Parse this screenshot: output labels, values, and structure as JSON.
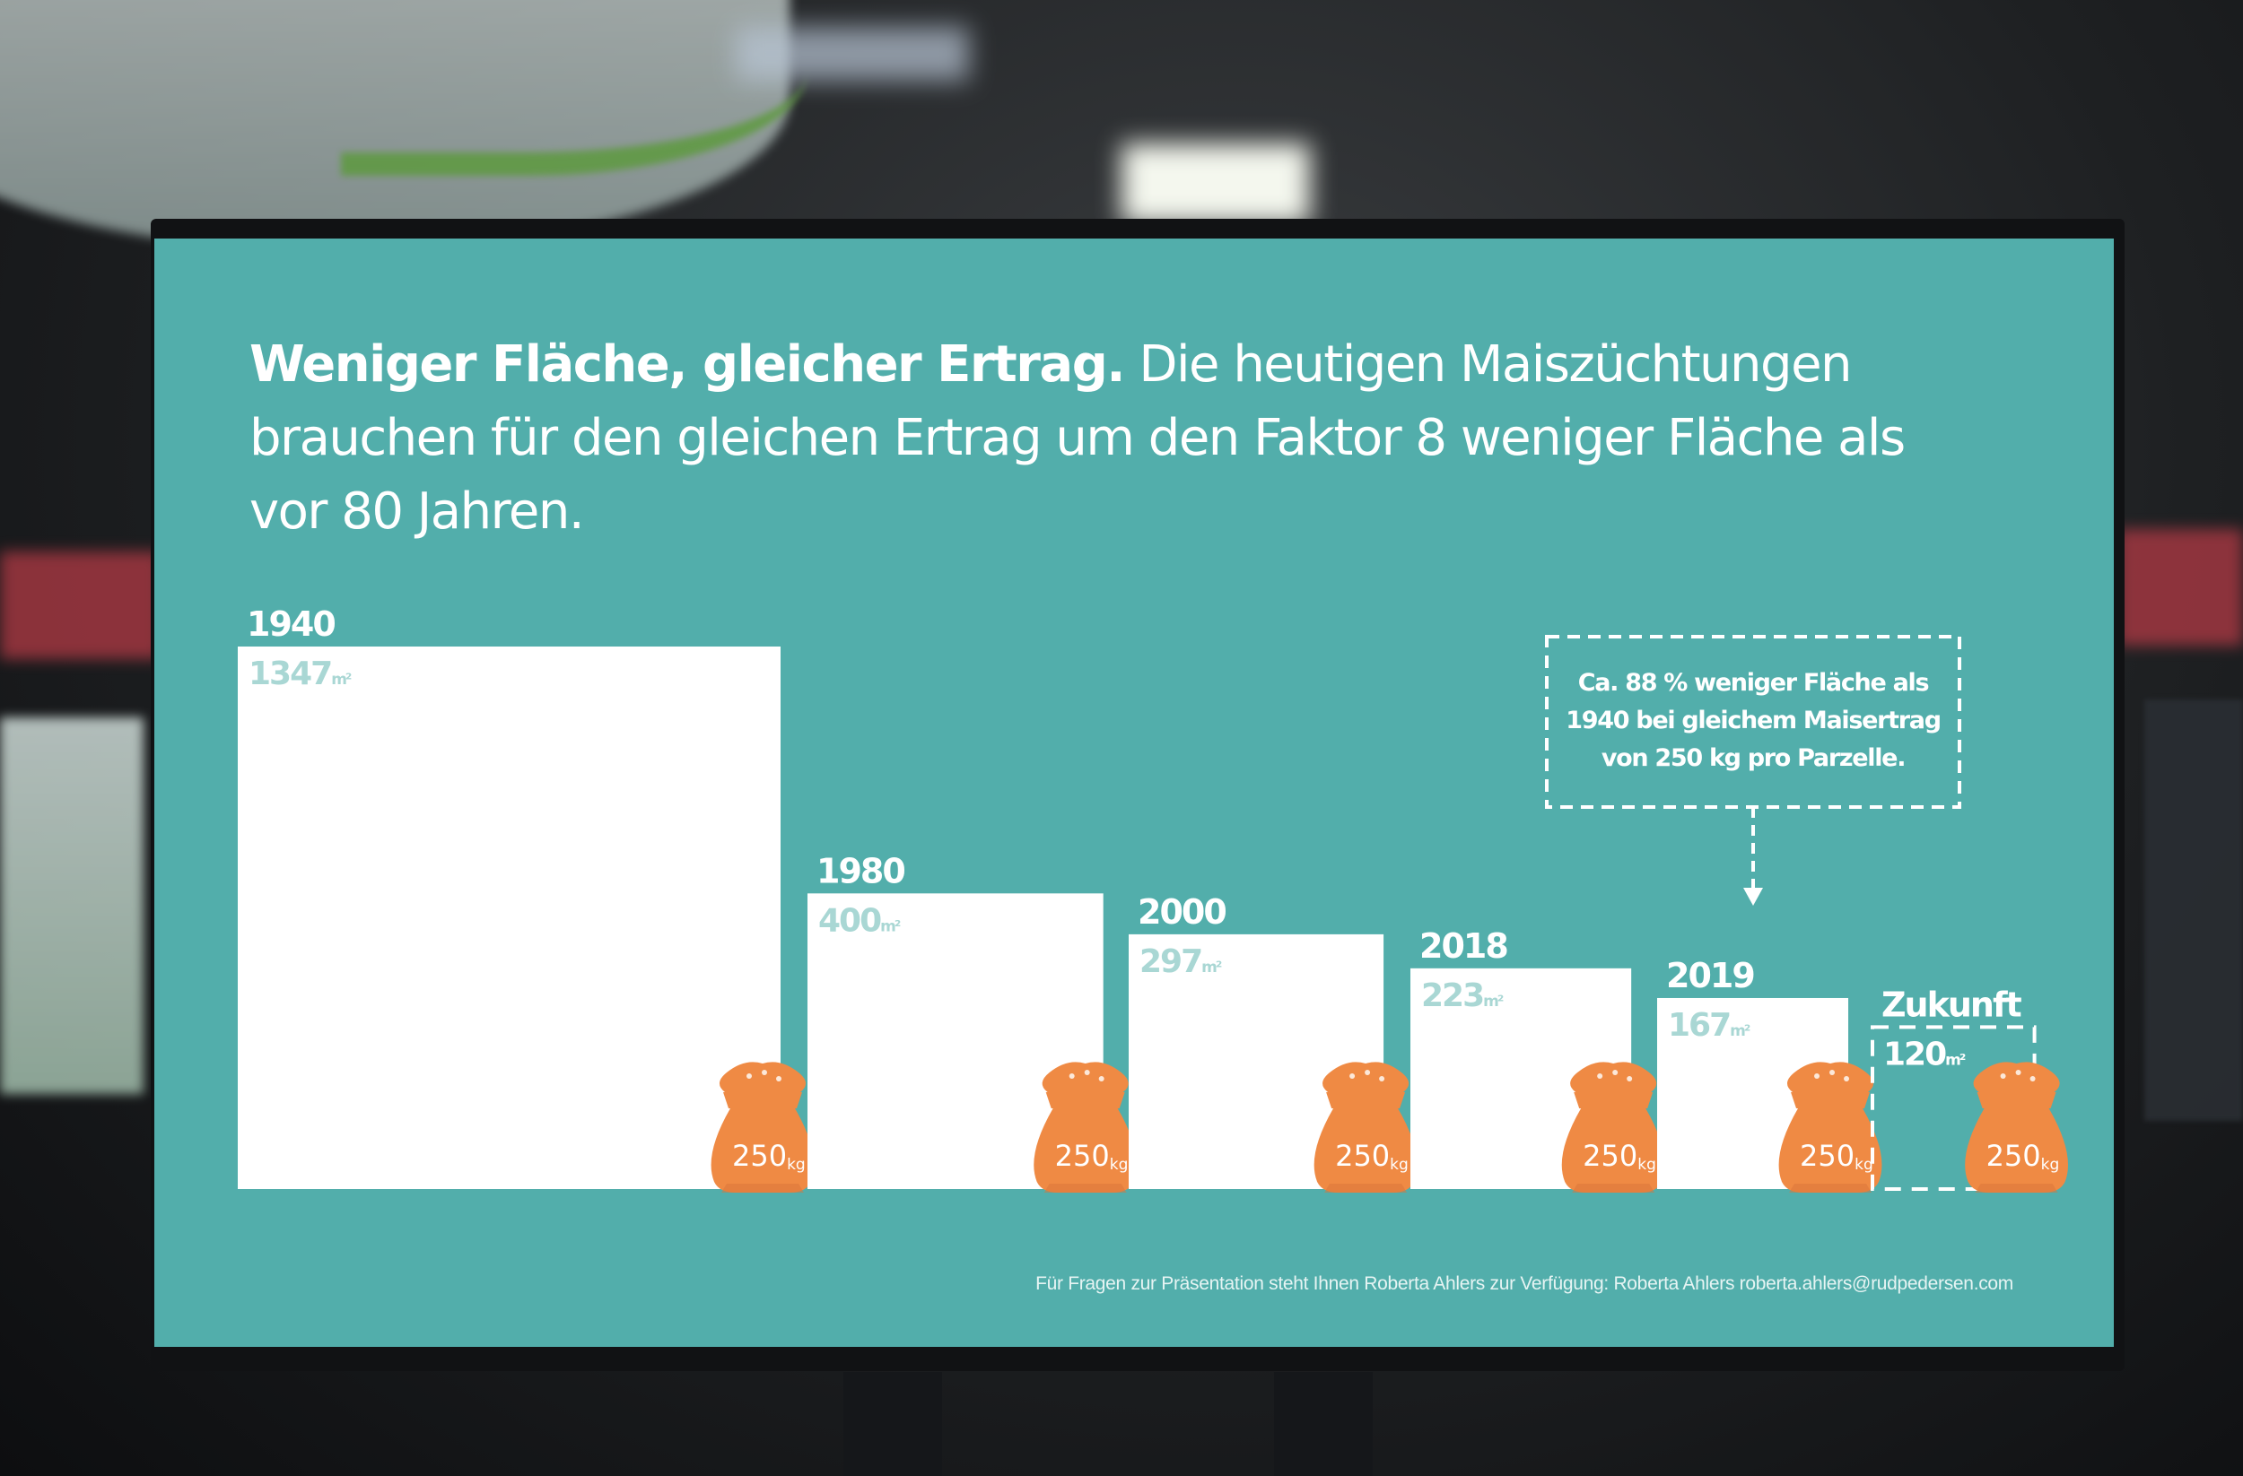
{
  "headline": {
    "bold": "Weniger Fläche, gleicher Ertrag.",
    "rest": " Die heutigen Maiszüchtungen brauchen für den gleichen Ertrag um den Faktor 8 weniger Fläche als vor 80 Jahren."
  },
  "chart_data": {
    "type": "bar",
    "categories": [
      "1940",
      "1980",
      "2000",
      "2018",
      "2019",
      "Zukunft"
    ],
    "values": [
      1347,
      400,
      297,
      223,
      167,
      120
    ],
    "unit": "m²",
    "value_labels": [
      "1347",
      "400",
      "297",
      "223",
      "167",
      "120"
    ],
    "sack_value": "250",
    "sack_unit": "kg",
    "estimated": [
      false,
      false,
      false,
      false,
      false,
      true
    ]
  },
  "callout": {
    "lines": [
      "Ca. 88 % weniger Fläche als",
      "1940 bei gleichem Maisertrag",
      "von 250 kg pro Parzelle."
    ]
  },
  "footer": "Für Fragen zur Präsentation steht Ihnen Roberta Ahlers zur Verfügung: Roberta Ahlers roberta.ahlers@rudpedersen.com",
  "colors": {
    "background": "#52aeab",
    "area": "#ffffff",
    "value_label": "#a9d7d4",
    "sack": "#ef8a44"
  }
}
